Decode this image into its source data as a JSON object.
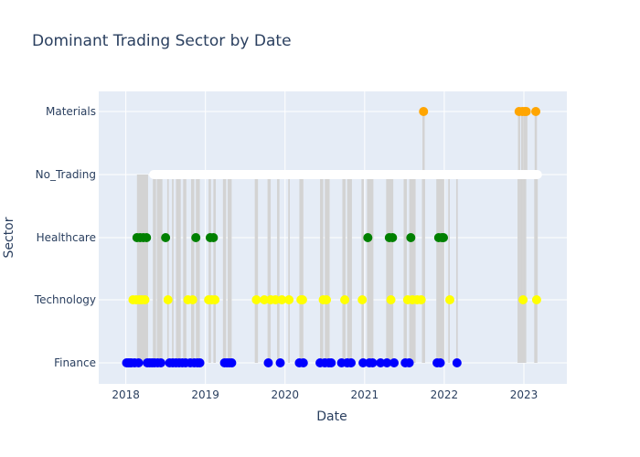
{
  "chart_data": {
    "type": "scatter",
    "title": "Dominant Trading Sector by Date",
    "xlabel": "Date",
    "ylabel": "Sector",
    "categories": [
      "Finance",
      "Technology",
      "Healthcare",
      "No_Trading",
      "Materials"
    ],
    "x_ticks": [
      "2018",
      "2019",
      "2020",
      "2021",
      "2022",
      "2023"
    ],
    "xlim": [
      2017.66,
      2023.54
    ],
    "grid": true,
    "legend": "none",
    "colors": {
      "Finance": "#0000ff",
      "Technology": "#ffff00",
      "Healthcare": "#008000",
      "No_Trading": "#ffffff",
      "Materials": "#ffa500",
      "connector": "#d3d3d3",
      "plot_bg": "#e5ecf6"
    },
    "no_trading_span": [
      2018.35,
      2023.17
    ],
    "points": [
      {
        "x": 2018.01,
        "y": "Finance"
      },
      {
        "x": 2018.03,
        "y": "Finance"
      },
      {
        "x": 2018.05,
        "y": "Finance"
      },
      {
        "x": 2018.07,
        "y": "Finance"
      },
      {
        "x": 2018.09,
        "y": "Technology"
      },
      {
        "x": 2018.11,
        "y": "Finance"
      },
      {
        "x": 2018.13,
        "y": "Technology"
      },
      {
        "x": 2018.14,
        "y": "Healthcare"
      },
      {
        "x": 2018.16,
        "y": "Finance"
      },
      {
        "x": 2018.17,
        "y": "Technology"
      },
      {
        "x": 2018.18,
        "y": "Healthcare"
      },
      {
        "x": 2018.2,
        "y": "Technology"
      },
      {
        "x": 2018.22,
        "y": "Healthcare"
      },
      {
        "x": 2018.24,
        "y": "Technology"
      },
      {
        "x": 2018.26,
        "y": "Healthcare"
      },
      {
        "x": 2018.27,
        "y": "Finance"
      },
      {
        "x": 2018.3,
        "y": "Finance"
      },
      {
        "x": 2018.33,
        "y": "Finance"
      },
      {
        "x": 2018.36,
        "y": "Finance"
      },
      {
        "x": 2018.4,
        "y": "Finance"
      },
      {
        "x": 2018.44,
        "y": "Finance"
      },
      {
        "x": 2018.5,
        "y": "Healthcare"
      },
      {
        "x": 2018.53,
        "y": "Technology"
      },
      {
        "x": 2018.55,
        "y": "Finance"
      },
      {
        "x": 2018.59,
        "y": "Finance"
      },
      {
        "x": 2018.63,
        "y": "Finance"
      },
      {
        "x": 2018.67,
        "y": "Finance"
      },
      {
        "x": 2018.71,
        "y": "Finance"
      },
      {
        "x": 2018.75,
        "y": "Finance"
      },
      {
        "x": 2018.78,
        "y": "Technology"
      },
      {
        "x": 2018.81,
        "y": "Finance"
      },
      {
        "x": 2018.84,
        "y": "Technology"
      },
      {
        "x": 2018.86,
        "y": "Finance"
      },
      {
        "x": 2018.88,
        "y": "Healthcare"
      },
      {
        "x": 2018.9,
        "y": "Finance"
      },
      {
        "x": 2018.93,
        "y": "Finance"
      },
      {
        "x": 2019.04,
        "y": "Technology"
      },
      {
        "x": 2019.06,
        "y": "Healthcare"
      },
      {
        "x": 2019.08,
        "y": "Technology"
      },
      {
        "x": 2019.1,
        "y": "Healthcare"
      },
      {
        "x": 2019.12,
        "y": "Technology"
      },
      {
        "x": 2019.24,
        "y": "Finance"
      },
      {
        "x": 2019.27,
        "y": "Finance"
      },
      {
        "x": 2019.3,
        "y": "Finance"
      },
      {
        "x": 2019.33,
        "y": "Finance"
      },
      {
        "x": 2019.64,
        "y": "Technology"
      },
      {
        "x": 2019.74,
        "y": "Technology"
      },
      {
        "x": 2019.79,
        "y": "Finance"
      },
      {
        "x": 2019.82,
        "y": "Technology"
      },
      {
        "x": 2019.88,
        "y": "Technology"
      },
      {
        "x": 2019.94,
        "y": "Finance"
      },
      {
        "x": 2019.96,
        "y": "Technology"
      },
      {
        "x": 2020.05,
        "y": "Technology"
      },
      {
        "x": 2020.18,
        "y": "Finance"
      },
      {
        "x": 2020.2,
        "y": "Technology"
      },
      {
        "x": 2020.22,
        "y": "Technology"
      },
      {
        "x": 2020.23,
        "y": "Finance"
      },
      {
        "x": 2020.44,
        "y": "Finance"
      },
      {
        "x": 2020.48,
        "y": "Technology"
      },
      {
        "x": 2020.5,
        "y": "Finance"
      },
      {
        "x": 2020.52,
        "y": "Technology"
      },
      {
        "x": 2020.55,
        "y": "Finance"
      },
      {
        "x": 2020.58,
        "y": "Finance"
      },
      {
        "x": 2020.71,
        "y": "Finance"
      },
      {
        "x": 2020.75,
        "y": "Technology"
      },
      {
        "x": 2020.78,
        "y": "Finance"
      },
      {
        "x": 2020.83,
        "y": "Finance"
      },
      {
        "x": 2020.97,
        "y": "Technology"
      },
      {
        "x": 2020.98,
        "y": "Finance"
      },
      {
        "x": 2021.04,
        "y": "Healthcare"
      },
      {
        "x": 2021.06,
        "y": "Finance"
      },
      {
        "x": 2021.1,
        "y": "Finance"
      },
      {
        "x": 2021.2,
        "y": "Finance"
      },
      {
        "x": 2021.28,
        "y": "Finance"
      },
      {
        "x": 2021.31,
        "y": "Healthcare"
      },
      {
        "x": 2021.33,
        "y": "Technology"
      },
      {
        "x": 2021.35,
        "y": "Healthcare"
      },
      {
        "x": 2021.37,
        "y": "Finance"
      },
      {
        "x": 2021.51,
        "y": "Finance"
      },
      {
        "x": 2021.54,
        "y": "Technology"
      },
      {
        "x": 2021.56,
        "y": "Finance"
      },
      {
        "x": 2021.58,
        "y": "Healthcare"
      },
      {
        "x": 2021.6,
        "y": "Technology"
      },
      {
        "x": 2021.66,
        "y": "Technology"
      },
      {
        "x": 2021.71,
        "y": "Technology"
      },
      {
        "x": 2021.74,
        "y": "Materials"
      },
      {
        "x": 2021.91,
        "y": "Finance"
      },
      {
        "x": 2021.93,
        "y": "Healthcare"
      },
      {
        "x": 2021.95,
        "y": "Finance"
      },
      {
        "x": 2021.97,
        "y": "Healthcare"
      },
      {
        "x": 2021.99,
        "y": "Healthcare"
      },
      {
        "x": 2022.07,
        "y": "Technology"
      },
      {
        "x": 2022.16,
        "y": "Finance"
      },
      {
        "x": 2022.94,
        "y": "Materials"
      },
      {
        "x": 2022.98,
        "y": "Materials"
      },
      {
        "x": 2022.99,
        "y": "Technology"
      },
      {
        "x": 2023.01,
        "y": "Materials"
      },
      {
        "x": 2023.03,
        "y": "Materials"
      },
      {
        "x": 2023.15,
        "y": "Materials"
      },
      {
        "x": 2023.16,
        "y": "Technology"
      }
    ],
    "connectors": [
      [
        2018.14,
        2018.28
      ],
      [
        2018.34,
        2018.38
      ],
      [
        2018.39,
        2018.46
      ],
      [
        2018.52,
        2018.54
      ],
      [
        2018.58,
        2018.6
      ],
      [
        2018.63,
        2018.69
      ],
      [
        2018.72,
        2018.76
      ],
      [
        2018.82,
        2018.86
      ],
      [
        2018.88,
        2018.93
      ],
      [
        2019.04,
        2019.07
      ],
      [
        2019.1,
        2019.13
      ],
      [
        2019.22,
        2019.26
      ],
      [
        2019.28,
        2019.33
      ],
      [
        2019.62,
        2019.66
      ],
      [
        2019.78,
        2019.82
      ],
      [
        2019.9,
        2019.93
      ],
      [
        2020.04,
        2020.06
      ],
      [
        2020.18,
        2020.23
      ],
      [
        2020.44,
        2020.48
      ],
      [
        2020.5,
        2020.56
      ],
      [
        2020.72,
        2020.76
      ],
      [
        2020.78,
        2020.84
      ],
      [
        2020.96,
        2020.99
      ],
      [
        2021.03,
        2021.11
      ],
      [
        2021.27,
        2021.36
      ],
      [
        2021.49,
        2021.53
      ],
      [
        2021.56,
        2021.64
      ],
      [
        2021.72,
        2021.76
      ],
      [
        2021.9,
        2022.0
      ],
      [
        2022.05,
        2022.07
      ],
      [
        2022.15,
        2022.17
      ],
      [
        2022.92,
        2023.03
      ],
      [
        2023.13,
        2023.17
      ]
    ]
  }
}
